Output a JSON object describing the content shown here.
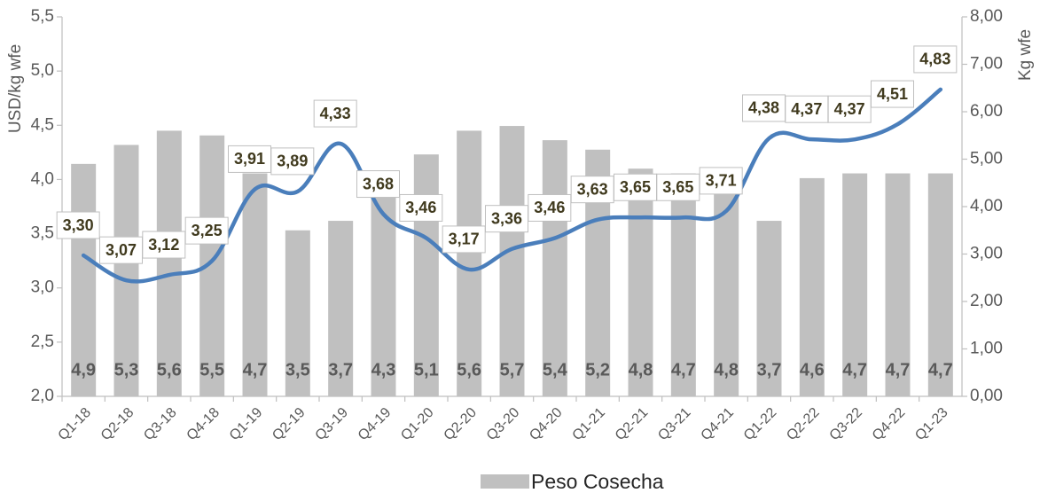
{
  "chart_data": {
    "type": "bar_line",
    "categories": [
      "Q1-18",
      "Q2-18",
      "Q3-18",
      "Q4-18",
      "Q1-19",
      "Q2-19",
      "Q3-19",
      "Q4-19",
      "Q1-20",
      "Q2-20",
      "Q3-20",
      "Q4-20",
      "Q1-21",
      "Q2-21",
      "Q3-21",
      "Q4-21",
      "Q1-22",
      "Q2-22",
      "Q3-22",
      "Q4-22",
      "Q1-23"
    ],
    "y_label": "USD/kg wfe",
    "y2_label": "Kg wfe",
    "ylim": [
      2.0,
      5.5
    ],
    "yticks": [
      {
        "value": 2.0,
        "label": "2,0"
      },
      {
        "value": 2.5,
        "label": "2,5"
      },
      {
        "value": 3.0,
        "label": "3,0"
      },
      {
        "value": 3.5,
        "label": "3,5"
      },
      {
        "value": 4.0,
        "label": "4,0"
      },
      {
        "value": 4.5,
        "label": "4,5"
      },
      {
        "value": 5.0,
        "label": "5,0"
      },
      {
        "value": 5.5,
        "label": "5,5"
      }
    ],
    "y2lim": [
      0,
      8
    ],
    "y2ticks": [
      {
        "value": 0,
        "label": "0,00"
      },
      {
        "value": 1,
        "label": "1,00"
      },
      {
        "value": 2,
        "label": "2,00"
      },
      {
        "value": 3,
        "label": "3,00"
      },
      {
        "value": 4,
        "label": "4,00"
      },
      {
        "value": 5,
        "label": "5,00"
      },
      {
        "value": 6,
        "label": "6,00"
      },
      {
        "value": 7,
        "label": "7,00"
      },
      {
        "value": 8,
        "label": "8,00"
      }
    ],
    "legend": "bottom",
    "series": [
      {
        "name": "Peso Cosecha",
        "type": "bar",
        "axis": "y2",
        "color": "#c0c0c0",
        "values": [
          4.9,
          5.3,
          5.6,
          5.5,
          4.7,
          3.5,
          3.7,
          4.3,
          5.1,
          5.6,
          5.7,
          5.4,
          5.2,
          4.8,
          4.7,
          4.8,
          3.7,
          4.6,
          4.7,
          4.7,
          4.7
        ],
        "value_labels": [
          "4,9",
          "5,3",
          "5,6",
          "5,5",
          "4,7",
          "3,5",
          "3,7",
          "4,3",
          "5,1",
          "5,6",
          "5,7",
          "5,4",
          "5,2",
          "4,8",
          "4,7",
          "4,8",
          "3,7",
          "4,6",
          "4,7",
          "4,7",
          "4,7"
        ]
      },
      {
        "type": "line",
        "axis": "y",
        "color": "#4a7ebb",
        "values": [
          3.3,
          3.07,
          3.12,
          3.25,
          3.91,
          3.89,
          4.33,
          3.68,
          3.46,
          3.17,
          3.36,
          3.46,
          3.63,
          3.65,
          3.65,
          3.71,
          4.38,
          4.37,
          4.37,
          4.51,
          4.83
        ],
        "value_labels": [
          "3,30",
          "3,07",
          "3,12",
          "3,25",
          "3,91",
          "3,89",
          "4,33",
          "3,68",
          "3,46",
          "3,17",
          "3,36",
          "3,46",
          "3,63",
          "3,65",
          "3,65",
          "3,71",
          "4,38",
          "4,37",
          "4,37",
          "4,51",
          "4,83"
        ]
      }
    ]
  }
}
